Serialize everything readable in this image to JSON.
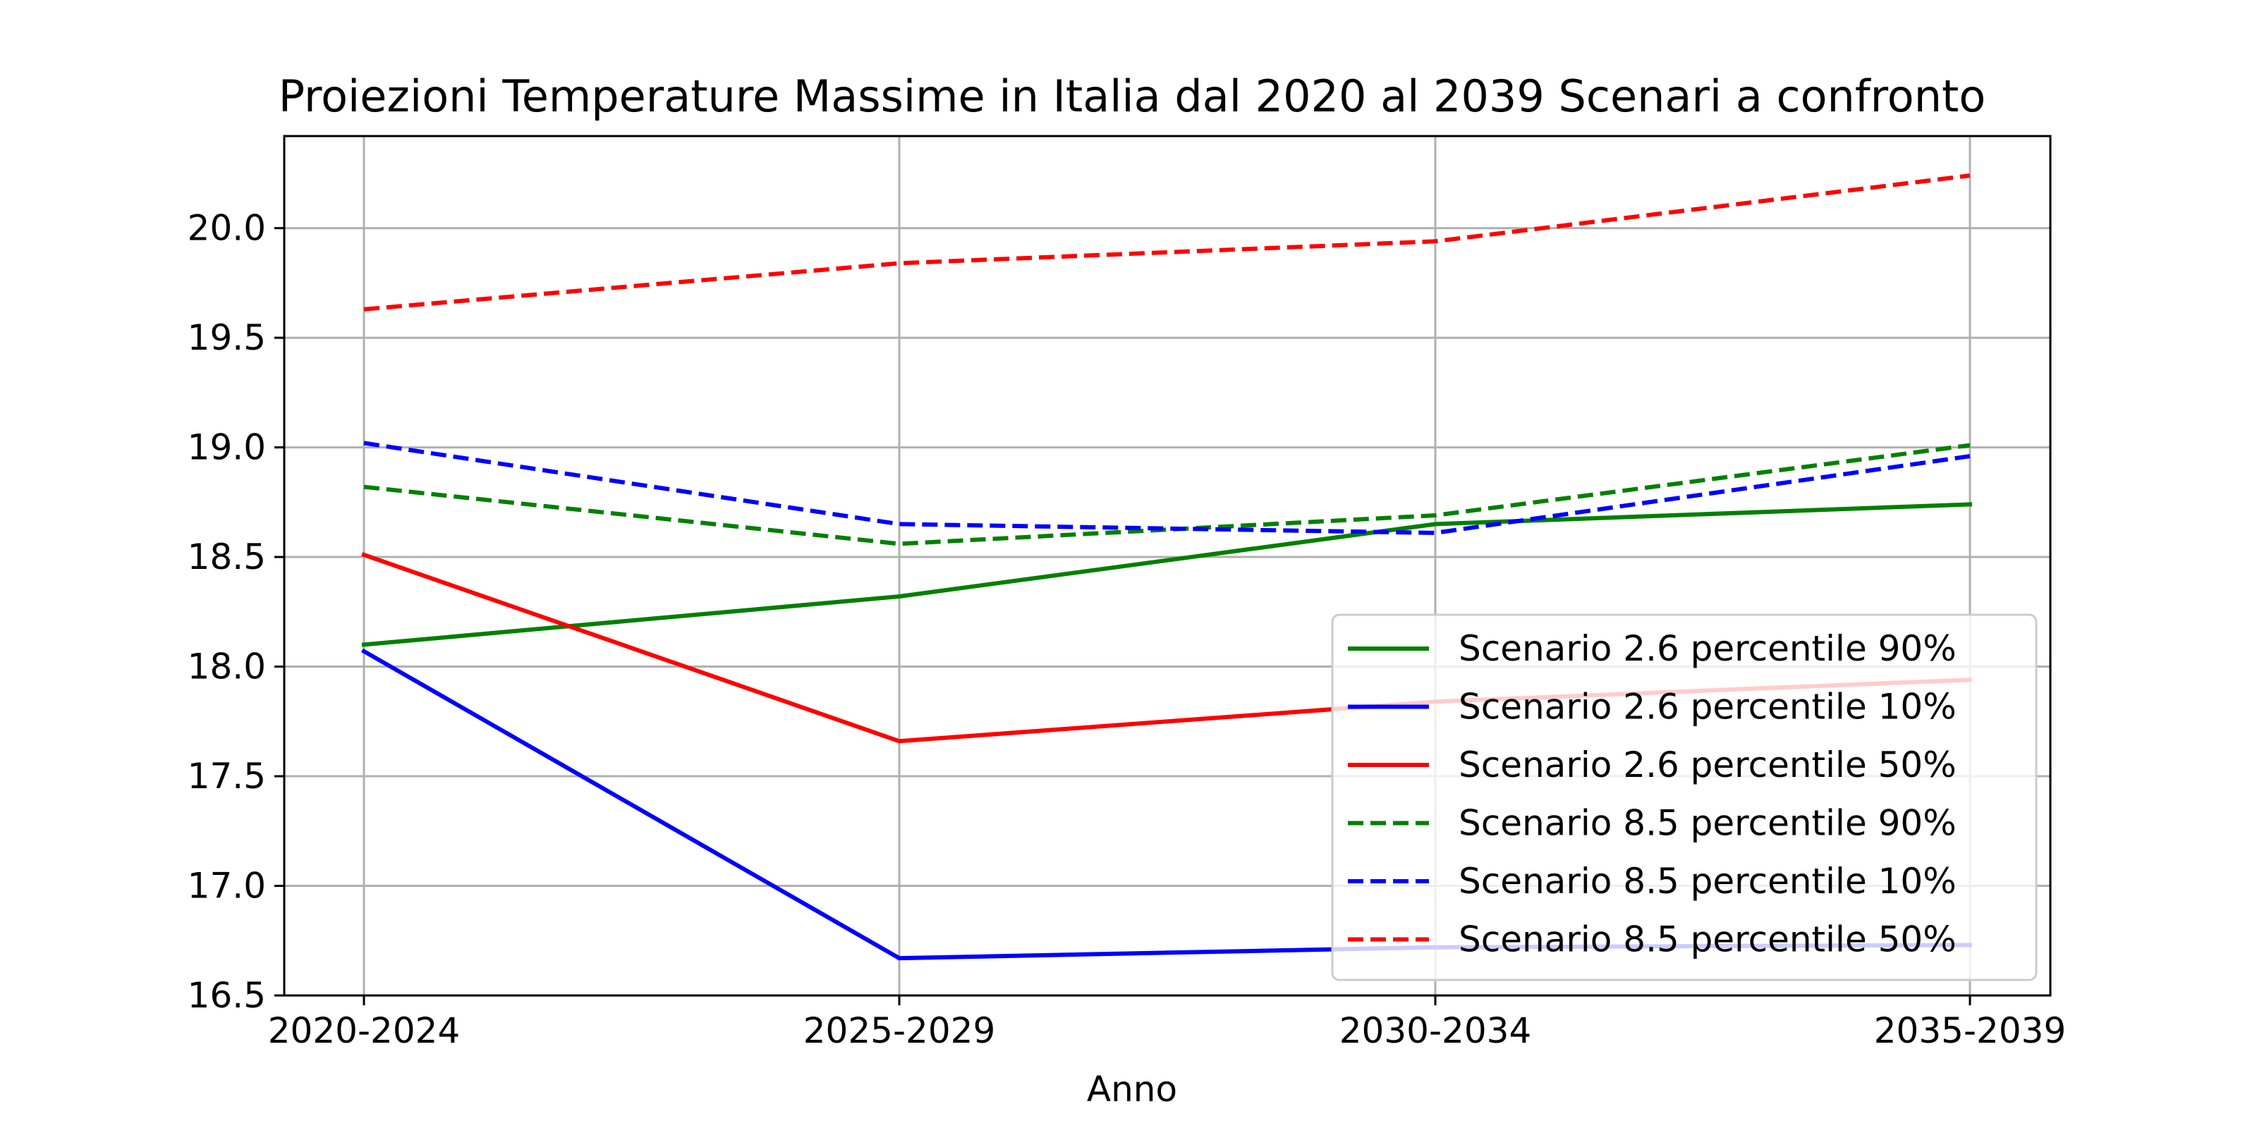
{
  "chart_data": {
    "type": "line",
    "title": "Proiezioni Temperature Massime in Italia dal 2020 al 2039 Scenari a confronto",
    "xlabel": "Anno",
    "ylabel": "",
    "categories": [
      "2020-2024",
      "2025-2029",
      "2030-2034",
      "2035-2039"
    ],
    "ylim": [
      16.5,
      20.42
    ],
    "yticks": [
      "16.5",
      "17.0",
      "17.5",
      "18.0",
      "18.5",
      "19.0",
      "19.5",
      "20.0"
    ],
    "grid": true,
    "legend_position": "lower-right",
    "series": [
      {
        "name": "Scenario 2.6 percentile 90%",
        "values": [
          18.1,
          18.32,
          18.65,
          18.74
        ],
        "color": "#008000",
        "dash": "solid"
      },
      {
        "name": "Scenario 2.6 percentile 10%",
        "values": [
          18.07,
          16.67,
          16.72,
          16.73
        ],
        "color": "#0000ff",
        "dash": "solid"
      },
      {
        "name": "Scenario 2.6 percentile 50%",
        "values": [
          18.51,
          17.66,
          17.84,
          17.94
        ],
        "color": "#ff0000",
        "dash": "solid"
      },
      {
        "name": "Scenario 8.5 percentile 90%",
        "values": [
          18.82,
          18.56,
          18.69,
          19.01
        ],
        "color": "#008000",
        "dash": "dashed"
      },
      {
        "name": "Scenario 8.5 percentile 10%",
        "values": [
          19.02,
          18.65,
          18.61,
          18.96
        ],
        "color": "#0000ff",
        "dash": "dashed"
      },
      {
        "name": "Scenario 8.5 percentile 50%",
        "values": [
          19.63,
          19.84,
          19.94,
          20.24
        ],
        "color": "#ff0000",
        "dash": "dashed"
      }
    ]
  }
}
